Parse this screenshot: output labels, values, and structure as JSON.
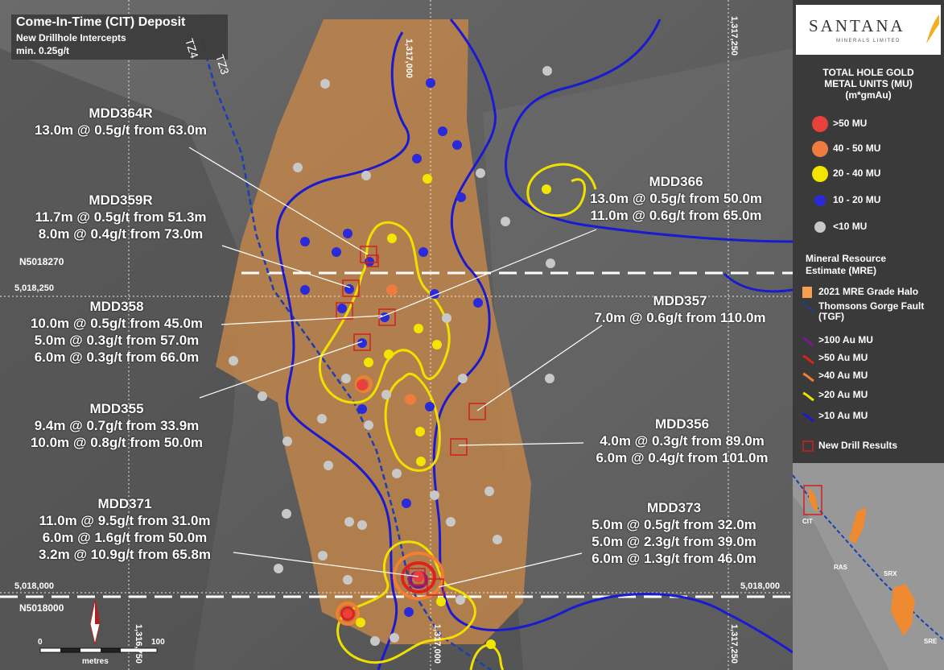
{
  "title": {
    "main": "Come-In-Time (CIT) Deposit",
    "sub1": "New Drillhole Intercepts",
    "sub2": "min. 0.25g/t"
  },
  "faults": [
    "TZ4",
    "TZ3"
  ],
  "grid": {
    "easting_top": [
      "1,317,000",
      "1,317,250"
    ],
    "easting_bottom": [
      "1,317,000",
      "1,317,250"
    ],
    "northing_250_left": "5,018,250",
    "northing_000_left": "5,018,000",
    "northing_000_right": "5,018,000",
    "north_line_upper": "N5018270",
    "north_line_lower": "N5018000",
    "scale_easting": "1,316,750"
  },
  "scale_bar": {
    "start": "0",
    "end": "100",
    "unit": "metres"
  },
  "callouts": [
    {
      "id": "MDD364R",
      "lines": [
        "13.0m @ 0.5g/t from 63.0m"
      ]
    },
    {
      "id": "MDD359R",
      "lines": [
        "11.7m @ 0.5g/t from 51.3m",
        "8.0m @ 0.4g/t from 73.0m"
      ]
    },
    {
      "id": "MDD358",
      "lines": [
        "10.0m @ 0.5g/t from 45.0m",
        "5.0m @ 0.3g/t from 57.0m",
        "6.0m @ 0.3g/t from 66.0m"
      ]
    },
    {
      "id": "MDD355",
      "lines": [
        "9.4m @ 0.7g/t from 33.9m",
        "10.0m @ 0.8g/t from 50.0m"
      ]
    },
    {
      "id": "MDD371",
      "lines": [
        "11.0m @ 9.5g/t from 31.0m",
        "6.0m @ 1.6g/t from 50.0m",
        "3.2m @ 10.9g/t from 65.8m"
      ]
    },
    {
      "id": "MDD366",
      "lines": [
        "13.0m @ 0.5g/t from 50.0m",
        "11.0m @ 0.6g/t from 65.0m"
      ]
    },
    {
      "id": "MDD357",
      "lines": [
        "7.0m @ 0.6g/t from 110.0m"
      ]
    },
    {
      "id": "MDD356",
      "lines": [
        "4.0m @ 0.3g/t from 89.0m",
        "6.0m @ 0.4g/t from 101.0m"
      ]
    },
    {
      "id": "MDD373",
      "lines": [
        "5.0m @ 0.5g/t from 32.0m",
        "5.0m @ 2.3g/t from 39.0m",
        "6.0m @ 1.3g/t from 46.0m"
      ]
    }
  ],
  "legend": {
    "logo": "SANTANA",
    "logo_sub": "MINERALS LIMITED",
    "heading": [
      "TOTAL HOLE GOLD",
      "METAL UNITS (MU)",
      "(m*gmAu)"
    ],
    "dots": [
      {
        "label": ">50 MU",
        "color": "#e8403a"
      },
      {
        "label": "40 - 50 MU",
        "color": "#f07b3f"
      },
      {
        "label": "20 - 40 MU",
        "color": "#f2e600"
      },
      {
        "label": "10 - 20 MU",
        "color": "#2a2ad8"
      },
      {
        "label": "<10 MU",
        "color": "#c8c8c8"
      }
    ],
    "mre_heading": [
      "Mineral Resource",
      "Estimate (MRE)"
    ],
    "mre_items": [
      {
        "label": "2021 MRE Grade Halo",
        "color": "#f5a050"
      },
      {
        "label": "Thomsons Gorge Fault (TGF)",
        "color": "#1a3fb0"
      }
    ],
    "contours": [
      {
        "label": ">100 Au MU",
        "color": "#7a1a8a"
      },
      {
        "label": ">50 Au MU",
        "color": "#e0201a"
      },
      {
        "label": ">40 Au MU",
        "color": "#f08030"
      },
      {
        "label": ">20 Au MU",
        "color": "#f0e000"
      },
      {
        "label": ">10 Au MU",
        "color": "#1a1ad0"
      }
    ],
    "new_results": "New Drill Results"
  },
  "inset": {
    "labels": [
      "CIT",
      "RAS",
      "SRX",
      "SRE"
    ]
  }
}
